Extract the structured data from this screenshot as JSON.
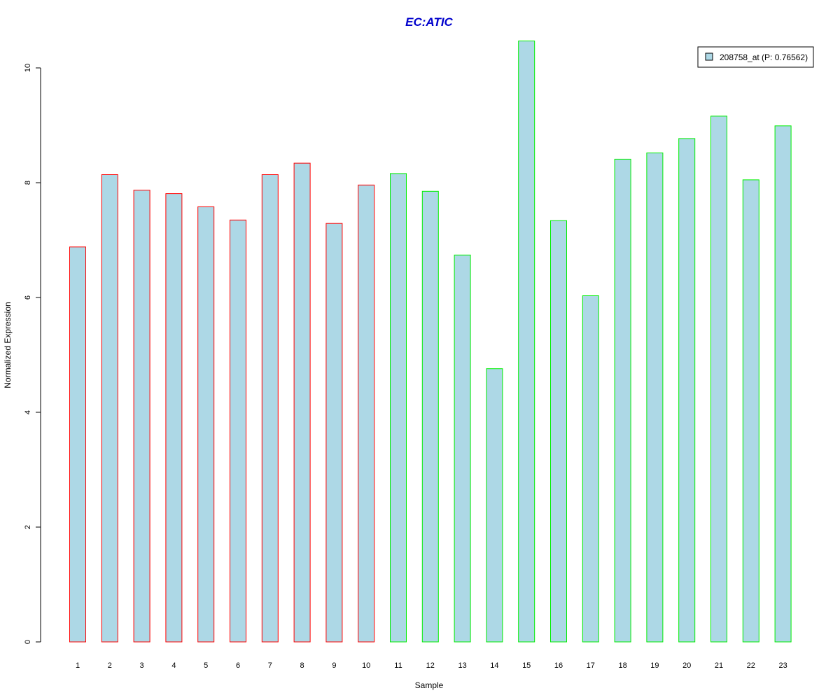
{
  "chart_data": {
    "type": "bar",
    "title": "EC:ATIC",
    "xlabel": "Sample",
    "ylabel": "Normalized Expression",
    "ylim": [
      0,
      10.5
    ],
    "yticks": [
      0,
      2,
      4,
      6,
      8,
      10
    ],
    "categories": [
      "1",
      "2",
      "3",
      "4",
      "5",
      "6",
      "7",
      "8",
      "9",
      "10",
      "11",
      "12",
      "13",
      "14",
      "15",
      "16",
      "17",
      "18",
      "19",
      "20",
      "21",
      "22",
      "23"
    ],
    "series": [
      {
        "name": "208758_at (P: 0.76562)",
        "values": [
          6.88,
          8.14,
          7.87,
          7.81,
          7.58,
          7.35,
          8.14,
          8.34,
          7.29,
          7.96,
          8.16,
          7.85,
          6.74,
          4.76,
          10.47,
          7.34,
          6.03,
          8.41,
          8.52,
          8.77,
          9.16,
          8.05,
          8.99
        ]
      }
    ],
    "group_border_colors": [
      "#ff0000",
      "#ff0000",
      "#ff0000",
      "#ff0000",
      "#ff0000",
      "#ff0000",
      "#ff0000",
      "#ff0000",
      "#ff0000",
      "#ff0000",
      "#00ee00",
      "#00ee00",
      "#00ee00",
      "#00ee00",
      "#00ee00",
      "#00ee00",
      "#00ee00",
      "#00ee00",
      "#00ee00",
      "#00ee00",
      "#00ee00",
      "#00ee00",
      "#00ee00"
    ],
    "bar_fill_color": "#add8e6",
    "title_color": "#0000cc",
    "legend_position": "top-right",
    "grid": false
  }
}
